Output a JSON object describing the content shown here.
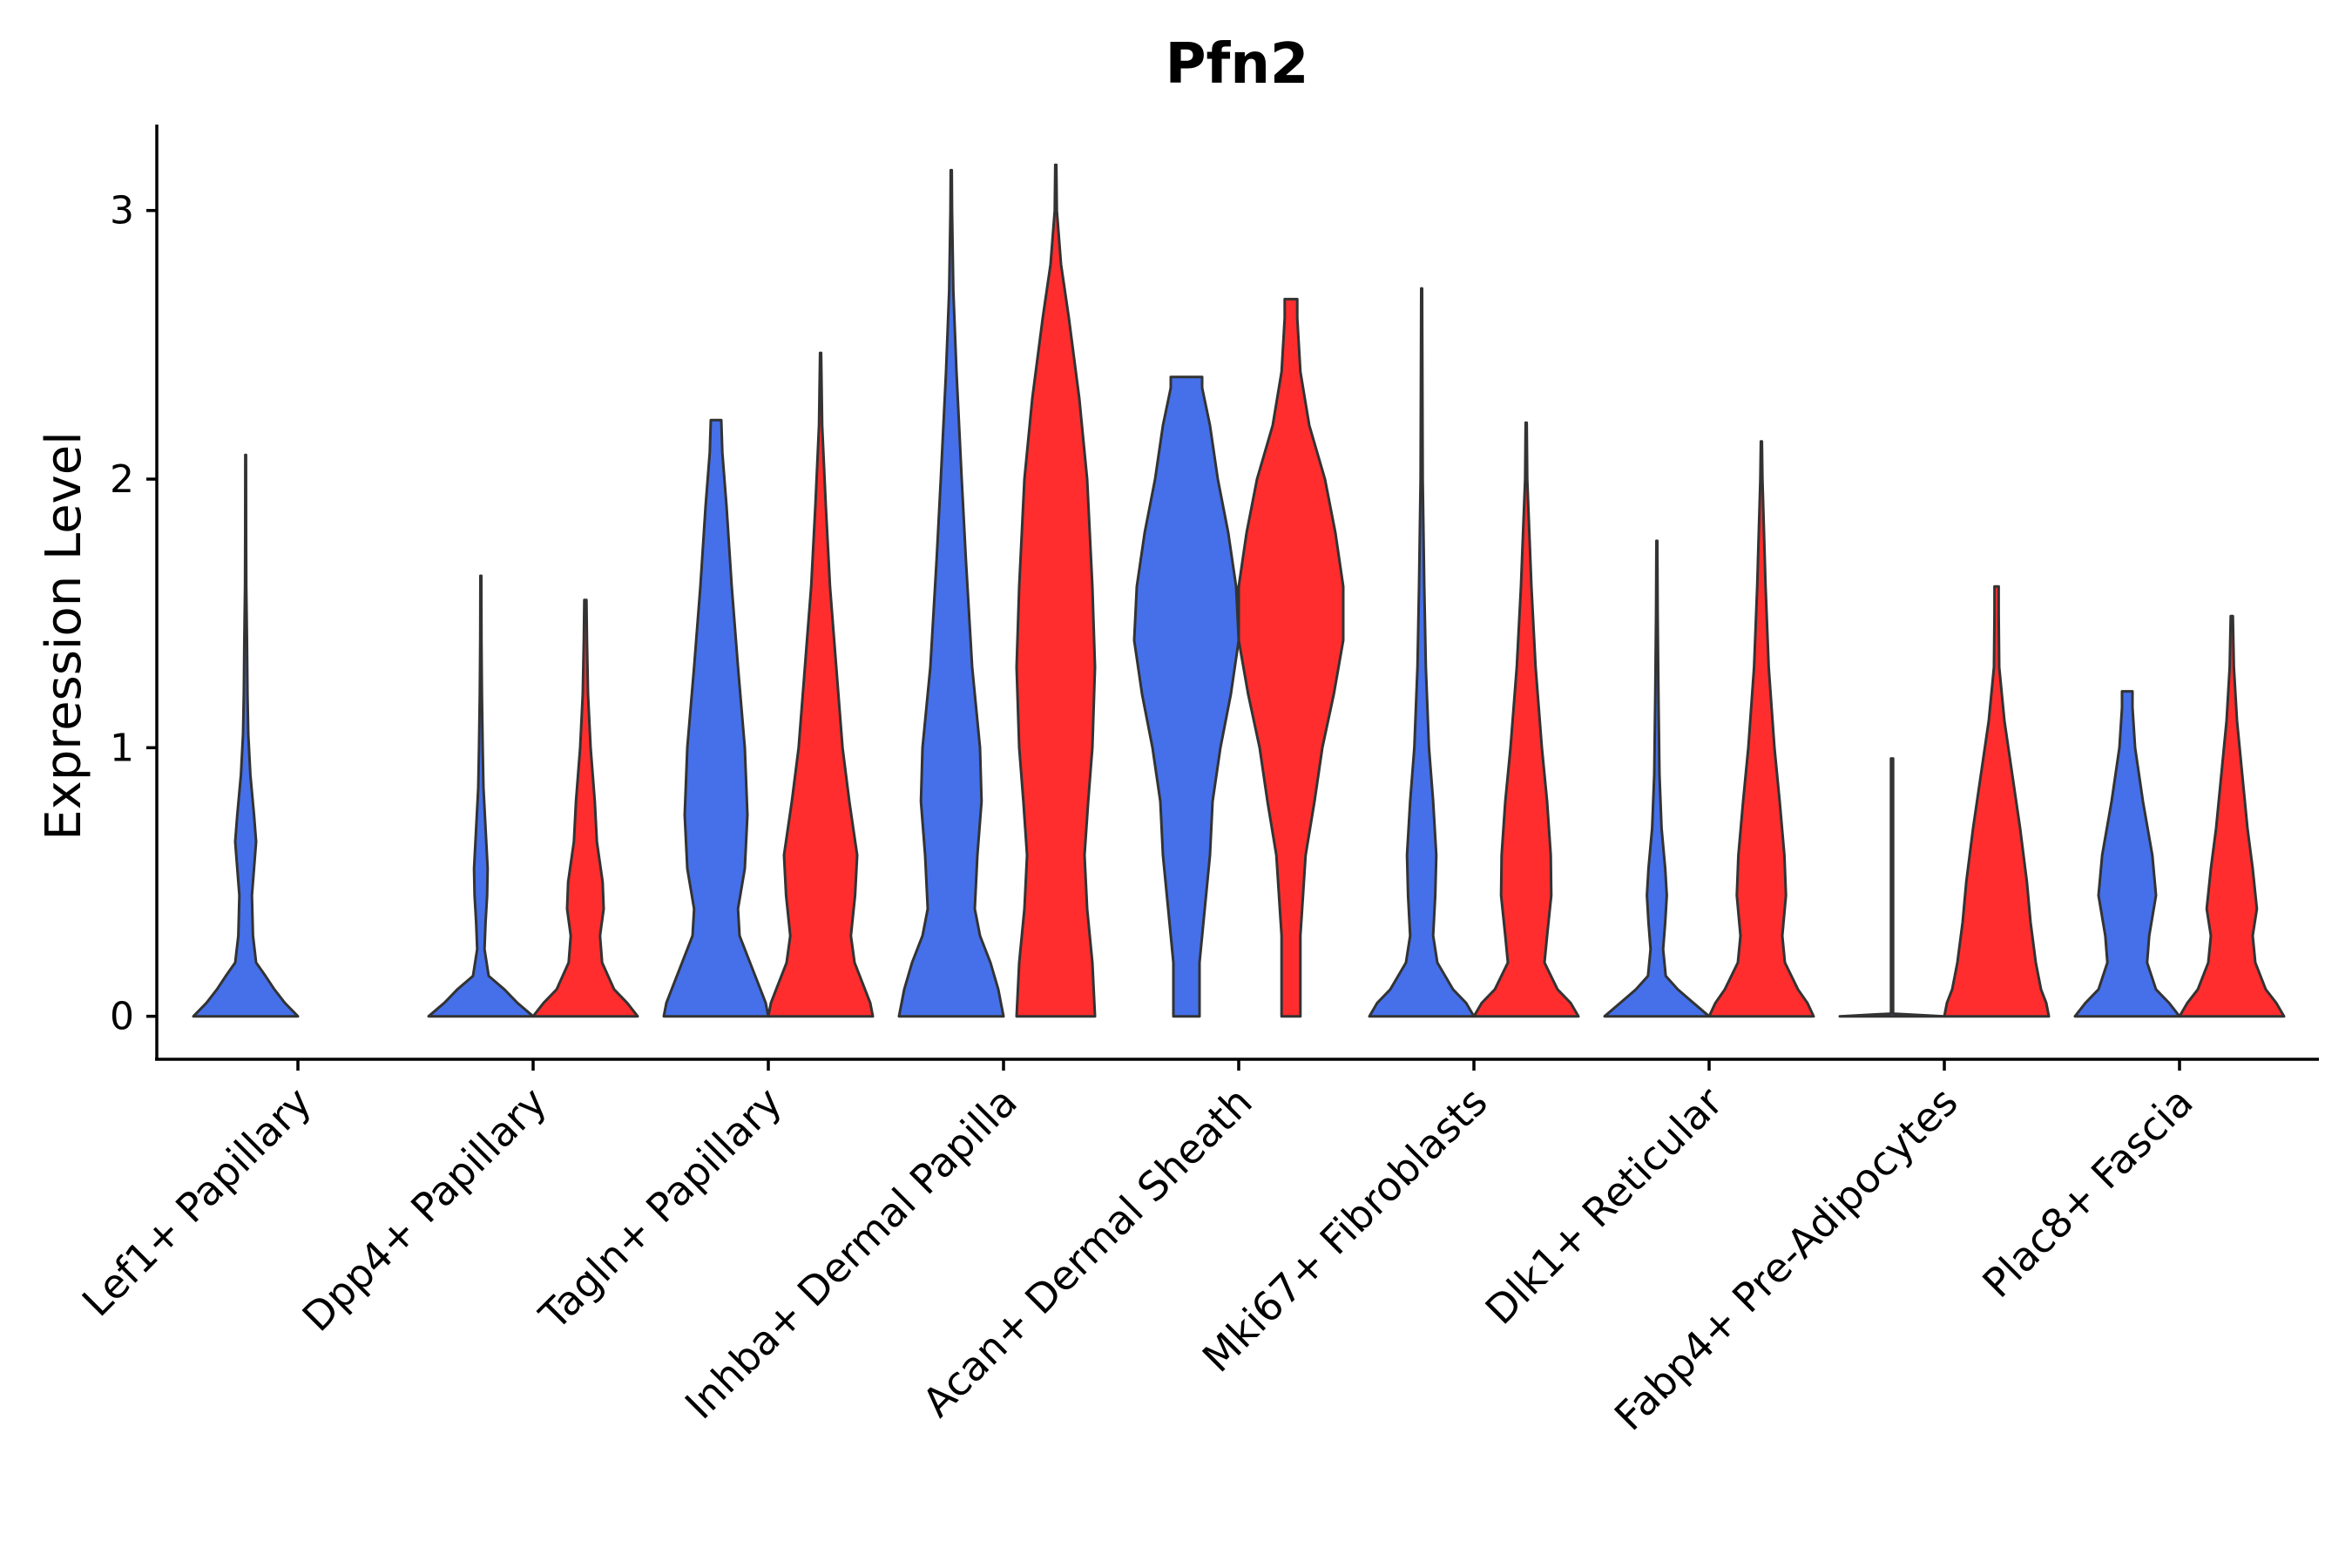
{
  "chart_data": {
    "type": "violin",
    "title": "Pfn2",
    "xlabel": "",
    "ylabel": "Expression Level",
    "ylim": [
      -0.16,
      3.32
    ],
    "yticks": [
      0,
      1,
      2,
      3
    ],
    "categories": [
      "Lef1+ Papillary",
      "Dpp4+ Papillary",
      "Tagln+ Papillary",
      "Inhba+ Dermal Papilla",
      "Acan+ Dermal Sheath",
      "Mki67+ Fibroblasts",
      "Dlk1+ Reticular",
      "Fabp4+ Pre-Adipocytes",
      "Plac8+ Fascia"
    ],
    "series": [
      {
        "name": "group 1",
        "color": "#4570EA",
        "violins": [
          {
            "category": "Lef1+ Papillary",
            "min": 0,
            "max": 2.09,
            "profile": [
              [
                0,
                1.0
              ],
              [
                0.05,
                0.75
              ],
              [
                0.1,
                0.55
              ],
              [
                0.15,
                0.38
              ],
              [
                0.2,
                0.2
              ],
              [
                0.3,
                0.14
              ],
              [
                0.45,
                0.12
              ],
              [
                0.55,
                0.16
              ],
              [
                0.65,
                0.2
              ],
              [
                0.75,
                0.16
              ],
              [
                0.9,
                0.09
              ],
              [
                1.05,
                0.05
              ],
              [
                1.2,
                0.035
              ],
              [
                1.4,
                0.025
              ],
              [
                1.6,
                0.012
              ],
              [
                1.8,
                0.008
              ],
              [
                2.09,
                0.006
              ]
            ]
          },
          {
            "category": "Dpp4+ Papillary",
            "min": 0,
            "max": 1.64,
            "profile": [
              [
                0,
                1.0
              ],
              [
                0.05,
                0.7
              ],
              [
                0.1,
                0.45
              ],
              [
                0.15,
                0.15
              ],
              [
                0.25,
                0.07
              ],
              [
                0.35,
                0.09
              ],
              [
                0.45,
                0.12
              ],
              [
                0.55,
                0.13
              ],
              [
                0.7,
                0.09
              ],
              [
                0.85,
                0.05
              ],
              [
                1.0,
                0.035
              ],
              [
                1.2,
                0.02
              ],
              [
                1.4,
                0.012
              ],
              [
                1.64,
                0.008
              ]
            ]
          },
          {
            "category": "Tagln+ Papillary",
            "min": 0,
            "max": 2.22,
            "profile": [
              [
                0,
                1.0
              ],
              [
                0.05,
                0.95
              ],
              [
                0.1,
                0.85
              ],
              [
                0.2,
                0.65
              ],
              [
                0.3,
                0.45
              ],
              [
                0.4,
                0.42
              ],
              [
                0.55,
                0.55
              ],
              [
                0.75,
                0.6
              ],
              [
                1.0,
                0.55
              ],
              [
                1.3,
                0.42
              ],
              [
                1.6,
                0.3
              ],
              [
                1.9,
                0.2
              ],
              [
                2.1,
                0.12
              ],
              [
                2.22,
                0.1
              ]
            ]
          },
          {
            "category": "Inhba+ Dermal Papilla",
            "min": 0,
            "max": 3.15,
            "profile": [
              [
                0,
                1.0
              ],
              [
                0.05,
                0.95
              ],
              [
                0.1,
                0.9
              ],
              [
                0.2,
                0.75
              ],
              [
                0.3,
                0.55
              ],
              [
                0.4,
                0.45
              ],
              [
                0.6,
                0.5
              ],
              [
                0.8,
                0.58
              ],
              [
                1.0,
                0.55
              ],
              [
                1.3,
                0.4
              ],
              [
                1.7,
                0.28
              ],
              [
                2.0,
                0.2
              ],
              [
                2.4,
                0.1
              ],
              [
                2.7,
                0.04
              ],
              [
                3.0,
                0.015
              ],
              [
                3.15,
                0.01
              ]
            ]
          },
          {
            "category": "Acan+ Dermal Sheath",
            "min": 0,
            "max": 2.38,
            "profile": [
              [
                0,
                0.25
              ],
              [
                0.2,
                0.25
              ],
              [
                0.4,
                0.35
              ],
              [
                0.6,
                0.45
              ],
              [
                0.8,
                0.5
              ],
              [
                1.0,
                0.65
              ],
              [
                1.2,
                0.85
              ],
              [
                1.4,
                1.0
              ],
              [
                1.6,
                0.95
              ],
              [
                1.8,
                0.8
              ],
              [
                2.0,
                0.6
              ],
              [
                2.2,
                0.45
              ],
              [
                2.34,
                0.3
              ],
              [
                2.38,
                0.3
              ]
            ]
          },
          {
            "category": "Mki67+ Fibroblasts",
            "min": 0,
            "max": 2.71,
            "profile": [
              [
                0,
                1.0
              ],
              [
                0.05,
                0.85
              ],
              [
                0.1,
                0.6
              ],
              [
                0.2,
                0.3
              ],
              [
                0.3,
                0.22
              ],
              [
                0.45,
                0.26
              ],
              [
                0.6,
                0.28
              ],
              [
                0.8,
                0.22
              ],
              [
                1.0,
                0.14
              ],
              [
                1.3,
                0.08
              ],
              [
                1.6,
                0.05
              ],
              [
                2.0,
                0.02
              ],
              [
                2.71,
                0.008
              ]
            ]
          },
          {
            "category": "Dlk1+ Reticular",
            "min": 0,
            "max": 1.77,
            "profile": [
              [
                0,
                1.0
              ],
              [
                0.05,
                0.7
              ],
              [
                0.1,
                0.4
              ],
              [
                0.15,
                0.17
              ],
              [
                0.25,
                0.12
              ],
              [
                0.35,
                0.16
              ],
              [
                0.45,
                0.19
              ],
              [
                0.55,
                0.16
              ],
              [
                0.7,
                0.09
              ],
              [
                0.9,
                0.05
              ],
              [
                1.2,
                0.03
              ],
              [
                1.5,
                0.015
              ],
              [
                1.77,
                0.008
              ]
            ]
          },
          {
            "category": "Fabp4+ Pre-Adipocytes",
            "min": 0,
            "max": 0.96,
            "profile": [
              [
                0,
                1.0
              ],
              [
                0.01,
                0.02
              ],
              [
                0.96,
                0.02
              ]
            ]
          },
          {
            "category": "Plac8+ Fascia",
            "min": 0,
            "max": 1.21,
            "profile": [
              [
                0,
                1.0
              ],
              [
                0.05,
                0.8
              ],
              [
                0.1,
                0.55
              ],
              [
                0.2,
                0.38
              ],
              [
                0.3,
                0.42
              ],
              [
                0.45,
                0.55
              ],
              [
                0.6,
                0.48
              ],
              [
                0.8,
                0.3
              ],
              [
                1.0,
                0.15
              ],
              [
                1.15,
                0.1
              ],
              [
                1.21,
                0.1
              ]
            ]
          }
        ]
      },
      {
        "name": "group 2",
        "color": "#FF2D2D",
        "violins": [
          {
            "category": "Dpp4+ Papillary",
            "min": 0,
            "max": 1.55,
            "profile": [
              [
                0,
                1.0
              ],
              [
                0.05,
                0.8
              ],
              [
                0.1,
                0.55
              ],
              [
                0.2,
                0.32
              ],
              [
                0.3,
                0.28
              ],
              [
                0.4,
                0.35
              ],
              [
                0.5,
                0.33
              ],
              [
                0.65,
                0.22
              ],
              [
                0.8,
                0.18
              ],
              [
                1.0,
                0.1
              ],
              [
                1.2,
                0.05
              ],
              [
                1.4,
                0.03
              ],
              [
                1.55,
                0.02
              ]
            ]
          },
          {
            "category": "Tagln+ Papillary",
            "min": 0,
            "max": 2.47,
            "profile": [
              [
                0,
                1.0
              ],
              [
                0.05,
                0.95
              ],
              [
                0.1,
                0.85
              ],
              [
                0.2,
                0.65
              ],
              [
                0.3,
                0.58
              ],
              [
                0.45,
                0.66
              ],
              [
                0.6,
                0.7
              ],
              [
                0.8,
                0.55
              ],
              [
                1.0,
                0.42
              ],
              [
                1.3,
                0.3
              ],
              [
                1.6,
                0.18
              ],
              [
                1.9,
                0.1
              ],
              [
                2.2,
                0.03
              ],
              [
                2.47,
                0.01
              ]
            ]
          },
          {
            "category": "Inhba+ Dermal Papilla",
            "min": 0,
            "max": 3.17,
            "profile": [
              [
                0,
                0.75
              ],
              [
                0.2,
                0.7
              ],
              [
                0.4,
                0.6
              ],
              [
                0.6,
                0.55
              ],
              [
                0.8,
                0.62
              ],
              [
                1.0,
                0.7
              ],
              [
                1.3,
                0.75
              ],
              [
                1.6,
                0.7
              ],
              [
                2.0,
                0.6
              ],
              [
                2.3,
                0.45
              ],
              [
                2.6,
                0.25
              ],
              [
                2.8,
                0.1
              ],
              [
                3.0,
                0.02
              ],
              [
                3.17,
                0.01
              ]
            ]
          },
          {
            "category": "Acan+ Dermal Sheath",
            "min": 0,
            "max": 2.67,
            "profile": [
              [
                0,
                0.18
              ],
              [
                0.3,
                0.18
              ],
              [
                0.6,
                0.28
              ],
              [
                0.8,
                0.45
              ],
              [
                1.0,
                0.6
              ],
              [
                1.2,
                0.82
              ],
              [
                1.4,
                1.0
              ],
              [
                1.6,
                1.0
              ],
              [
                1.8,
                0.85
              ],
              [
                2.0,
                0.65
              ],
              [
                2.2,
                0.35
              ],
              [
                2.4,
                0.18
              ],
              [
                2.6,
                0.12
              ],
              [
                2.67,
                0.12
              ]
            ]
          },
          {
            "category": "Mki67+ Fibroblasts",
            "min": 0,
            "max": 2.21,
            "profile": [
              [
                0,
                1.0
              ],
              [
                0.05,
                0.85
              ],
              [
                0.1,
                0.6
              ],
              [
                0.2,
                0.35
              ],
              [
                0.3,
                0.4
              ],
              [
                0.45,
                0.48
              ],
              [
                0.6,
                0.47
              ],
              [
                0.8,
                0.4
              ],
              [
                1.0,
                0.3
              ],
              [
                1.3,
                0.18
              ],
              [
                1.6,
                0.1
              ],
              [
                2.0,
                0.02
              ],
              [
                2.21,
                0.01
              ]
            ]
          },
          {
            "category": "Dlk1+ Reticular",
            "min": 0,
            "max": 2.14,
            "profile": [
              [
                0,
                1.0
              ],
              [
                0.05,
                0.88
              ],
              [
                0.1,
                0.7
              ],
              [
                0.2,
                0.45
              ],
              [
                0.3,
                0.4
              ],
              [
                0.45,
                0.47
              ],
              [
                0.6,
                0.44
              ],
              [
                0.8,
                0.35
              ],
              [
                1.0,
                0.25
              ],
              [
                1.3,
                0.14
              ],
              [
                1.6,
                0.08
              ],
              [
                2.0,
                0.02
              ],
              [
                2.14,
                0.01
              ]
            ]
          },
          {
            "category": "Fabp4+ Pre-Adipocytes",
            "min": 0,
            "max": 1.6,
            "profile": [
              [
                0,
                1.0
              ],
              [
                0.05,
                0.95
              ],
              [
                0.1,
                0.85
              ],
              [
                0.2,
                0.75
              ],
              [
                0.35,
                0.65
              ],
              [
                0.5,
                0.58
              ],
              [
                0.7,
                0.45
              ],
              [
                0.9,
                0.3
              ],
              [
                1.1,
                0.15
              ],
              [
                1.3,
                0.05
              ],
              [
                1.5,
                0.04
              ],
              [
                1.6,
                0.04
              ]
            ]
          },
          {
            "category": "Plac8+ Fascia",
            "min": 0,
            "max": 1.49,
            "profile": [
              [
                0,
                1.0
              ],
              [
                0.05,
                0.85
              ],
              [
                0.1,
                0.65
              ],
              [
                0.2,
                0.45
              ],
              [
                0.3,
                0.4
              ],
              [
                0.4,
                0.48
              ],
              [
                0.55,
                0.4
              ],
              [
                0.7,
                0.3
              ],
              [
                0.9,
                0.2
              ],
              [
                1.1,
                0.1
              ],
              [
                1.3,
                0.04
              ],
              [
                1.49,
                0.02
              ]
            ]
          }
        ]
      }
    ]
  }
}
